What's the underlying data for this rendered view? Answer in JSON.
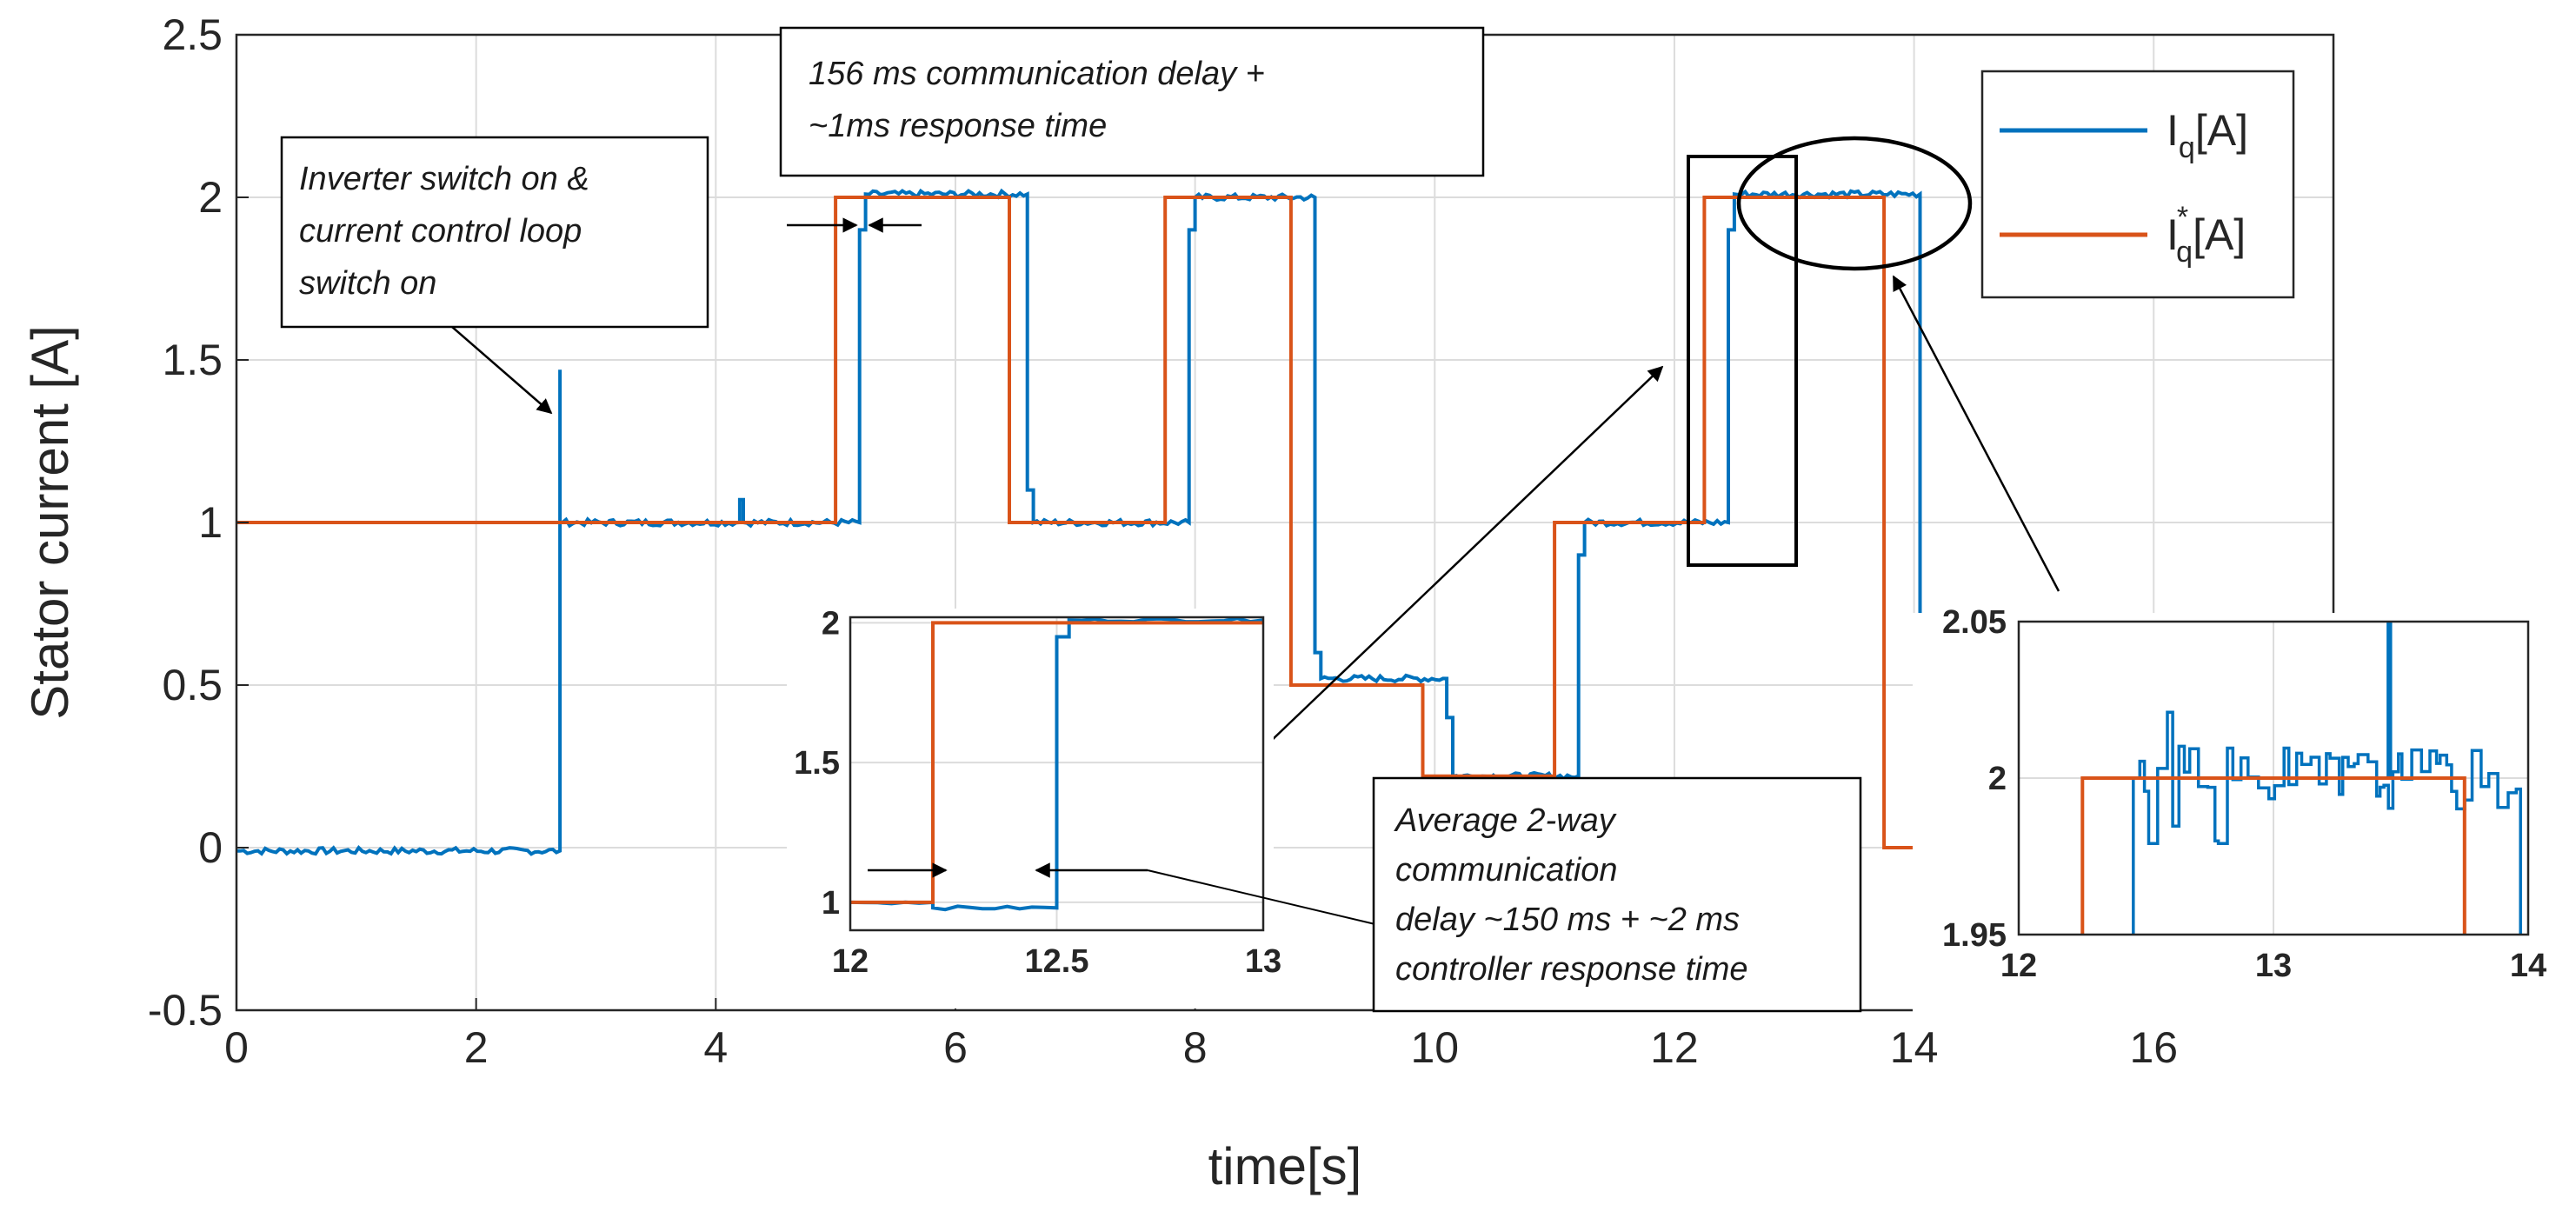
{
  "chart_data": {
    "type": "line",
    "xlabel": "time[s]",
    "ylabel": "Stator current [A]",
    "xlim": [
      0,
      17.5
    ],
    "ylim": [
      -0.5,
      2.5
    ],
    "xticks": [
      "0",
      "2",
      "4",
      "6",
      "8",
      "10",
      "12",
      "14",
      "16"
    ],
    "yticks": [
      "2.5",
      "2",
      "1.5",
      "1",
      "0.5",
      "0",
      "-0.5"
    ],
    "grid": true,
    "legend_position": "top-right",
    "colors": {
      "iq": "#0072BD",
      "iq_ref": "#D95319"
    },
    "legend": {
      "iq": {
        "base": "I",
        "sub": "q",
        "unit": "[A]"
      },
      "iq_ref": {
        "base": "I",
        "sup": "*",
        "sub": "q",
        "unit": "[A]"
      }
    },
    "series": [
      {
        "key": "iq",
        "x": [
          0,
          2.7,
          2.7,
          2.7,
          2.7,
          2.72,
          2.72,
          4.2,
          4.2,
          4.23,
          4.23,
          5.2,
          5.2,
          5.25,
          5.25,
          6.6,
          6.6,
          6.65,
          6.65,
          7.95,
          7.95,
          8.0,
          8.0,
          9.0,
          9.0,
          9.05,
          9.05,
          10.1,
          10.1,
          10.15,
          10.15,
          11.2,
          11.2,
          11.25,
          11.25,
          12.45,
          12.45,
          12.5,
          12.5,
          14.05,
          14.05,
          14.1,
          14.1
        ],
        "y": [
          -0.01,
          -0.01,
          1.47,
          1.0,
          1.0,
          1.0,
          1.0,
          1.0,
          1.07,
          1.07,
          1.0,
          1.0,
          1.9,
          1.9,
          2.01,
          2.01,
          1.1,
          1.1,
          1.0,
          1.0,
          1.9,
          1.9,
          2.0,
          2.0,
          0.6,
          0.6,
          0.52,
          0.52,
          0.4,
          0.4,
          0.22,
          0.22,
          0.9,
          0.9,
          1.0,
          1.0,
          1.9,
          1.9,
          2.01,
          2.01,
          0.1,
          0.1,
          0.0
        ],
        "noise": 0.01
      },
      {
        "key": "iq_ref",
        "x": [
          0,
          5.0,
          5.0,
          6.45,
          6.45,
          7.75,
          7.75,
          8.8,
          8.8,
          9.9,
          9.9,
          11.0,
          11.0,
          12.25,
          12.25,
          13.75,
          13.75,
          14.5
        ],
        "y": [
          1,
          1,
          2,
          2,
          1,
          1,
          2,
          2,
          0.5,
          0.5,
          0.22,
          0.22,
          1,
          1,
          2,
          2,
          0,
          0
        ]
      }
    ],
    "insets": [
      {
        "xlim": [
          12,
          13
        ],
        "ylim": [
          0.9,
          2.02
        ],
        "xticks": [
          "12",
          "12.5",
          "13"
        ],
        "yticks": [
          "2",
          "1.5",
          "1"
        ],
        "iq_x": [
          12,
          12.2,
          12.2,
          12.5,
          12.5,
          12.53,
          12.53,
          13
        ],
        "iq_y": [
          1.0,
          1.0,
          0.98,
          0.98,
          1.95,
          1.95,
          2.01,
          2.01
        ],
        "ref_x": [
          12,
          12.2,
          12.2,
          13
        ],
        "ref_y": [
          1,
          1,
          2,
          2
        ]
      },
      {
        "xlim": [
          12,
          14
        ],
        "ylim": [
          1.95,
          2.05
        ],
        "xticks": [
          "12",
          "13",
          "14"
        ],
        "yticks": [
          "2.05",
          "2",
          "1.95"
        ],
        "ref_x": [
          12,
          12.25,
          12.25,
          13.75,
          13.75,
          14
        ],
        "ref_y": [
          1.93,
          1.93,
          2,
          2,
          1.93,
          1.93
        ]
      }
    ],
    "annotations": {
      "switch_on": [
        "Inverter switch on &",
        "current control loop",
        "switch on"
      ],
      "delay_top": [
        "156 ms communication  delay +",
        "~1ms response time"
      ],
      "delay_avg": [
        "Average 2-way",
        "communication",
        "delay ~150 ms + ~2 ms",
        "controller response time"
      ]
    }
  }
}
